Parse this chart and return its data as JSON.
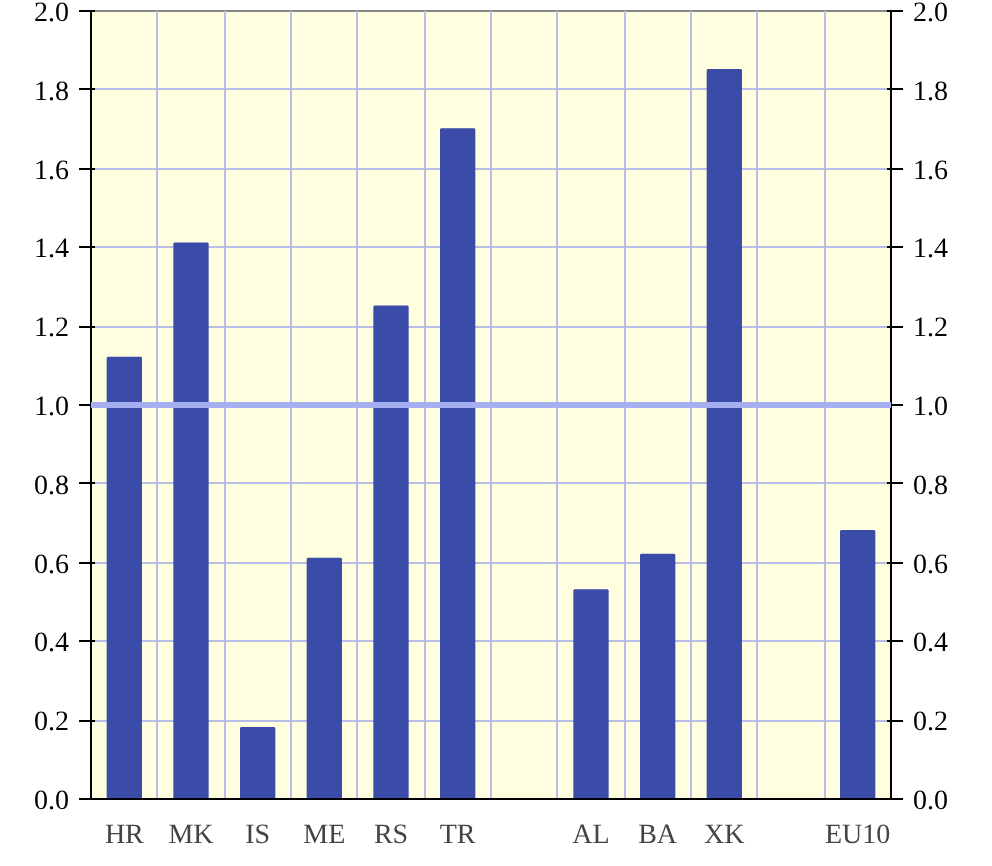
{
  "chart_data": {
    "type": "bar",
    "categories": [
      "HR",
      "MK",
      "IS",
      "ME",
      "RS",
      "TR",
      null,
      "AL",
      "BA",
      "XK",
      null,
      "EU10"
    ],
    "values": [
      1.12,
      1.41,
      0.18,
      0.61,
      1.25,
      1.7,
      null,
      0.53,
      0.62,
      1.85,
      null,
      0.68
    ],
    "color": "#3b4ba8",
    "ylim": [
      0,
      2
    ],
    "yticks": [
      {
        "value": 0,
        "label": "0.0"
      },
      0.2,
      0.4,
      0.6,
      0.8,
      {
        "value": 1,
        "label": "1.0"
      },
      1.2,
      1.4,
      1.6,
      1.8,
      {
        "value": 2,
        "label": "2.0"
      }
    ],
    "y2lim": [
      0,
      2
    ],
    "y2ticks": [
      {
        "value": 0,
        "label": "0.0"
      },
      0.2,
      0.4,
      0.6,
      0.8,
      {
        "value": 1,
        "label": "1.0"
      },
      1.2,
      1.4,
      1.6,
      1.8,
      {
        "value": 2,
        "label": "2.0"
      }
    ],
    "ref_lines": [
      {
        "axis": "y",
        "value": 1.0,
        "label": null,
        "color": "#a4aef0"
      }
    ],
    "grid": true
  }
}
